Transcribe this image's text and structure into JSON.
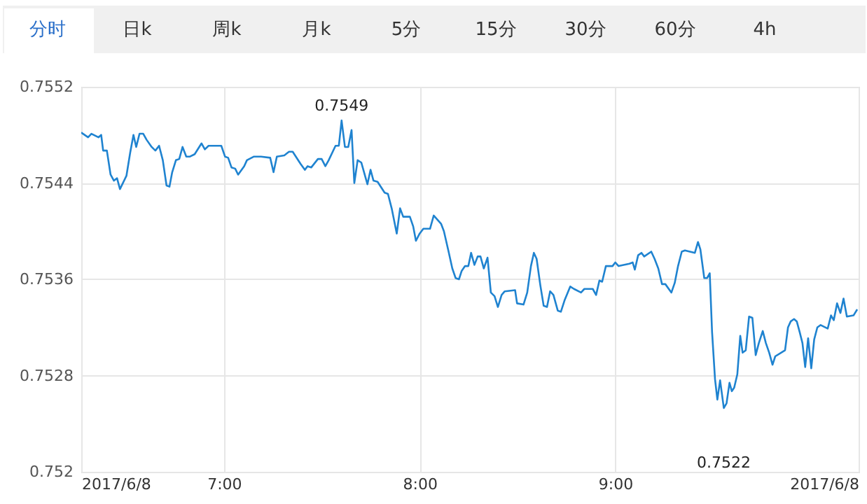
{
  "chart_data": {
    "type": "line",
    "annotations": [
      "分时",
      "日k",
      "周k",
      "月k",
      "5分",
      "15分",
      "30分",
      "60分",
      "4h",
      {
        "text": "0.7549",
        "x": 7.601,
        "y": 0.75492
      },
      {
        "text": "0.7522",
        "x": 9.555,
        "y": 0.75253
      }
    ],
    "xlim": [
      6.27,
      10.244
    ],
    "xticks": [
      {
        "value": 6.27,
        "label": "2017/6/8"
      },
      {
        "value": 7,
        "label": "7:00"
      },
      {
        "value": 8,
        "label": "8:00"
      },
      {
        "value": 9,
        "label": "9:00"
      },
      {
        "value": 10.244,
        "label": "2017/6/8"
      }
    ],
    "ylim": [
      0.752,
      0.7552
    ],
    "yticks": [
      0.752,
      0.7528,
      0.7536,
      0.7544,
      0.7552
    ],
    "grid": true,
    "marker": "none",
    "line_style": "solid",
    "series": [
      {
        "color": "#1f83d0",
        "x": [
          6.27,
          6.305,
          6.322,
          6.358,
          6.372,
          6.382,
          6.401,
          6.42,
          6.437,
          6.453,
          6.468,
          6.501,
          6.52,
          6.537,
          6.551,
          6.568,
          6.587,
          6.604,
          6.63,
          6.649,
          6.668,
          6.687,
          6.706,
          6.721,
          6.735,
          6.754,
          6.771,
          6.788,
          6.807,
          6.826,
          6.85,
          6.885,
          6.902,
          6.921,
          6.986,
          7.005,
          7.021,
          7.038,
          7.057,
          7.072,
          7.103,
          7.117,
          7.153,
          7.189,
          7.236,
          7.253,
          7.27,
          7.308,
          7.332,
          7.351,
          7.391,
          7.413,
          7.427,
          7.446,
          7.48,
          7.499,
          7.518,
          7.535,
          7.57,
          7.587,
          7.601,
          7.618,
          7.635,
          7.652,
          7.666,
          7.683,
          7.702,
          7.733,
          7.749,
          7.764,
          7.785,
          7.821,
          7.838,
          7.857,
          7.883,
          7.9,
          7.916,
          7.95,
          7.967,
          7.981,
          8.0,
          8.019,
          8.053,
          8.072,
          8.11,
          8.124,
          8.148,
          8.167,
          8.184,
          8.201,
          8.215,
          8.232,
          8.249,
          8.263,
          8.28,
          8.297,
          8.311,
          8.328,
          8.347,
          8.364,
          8.383,
          8.4,
          8.419,
          8.435,
          8.488,
          8.498,
          8.531,
          8.55,
          8.569,
          8.584,
          8.598,
          8.617,
          8.634,
          8.651,
          8.667,
          8.684,
          8.706,
          8.722,
          8.742,
          8.77,
          8.789,
          8.825,
          8.842,
          8.885,
          8.902,
          8.919,
          8.933,
          8.952,
          8.986,
          9.0,
          9.017,
          9.072,
          9.089,
          9.1,
          9.117,
          9.134,
          9.148,
          9.184,
          9.201,
          9.22,
          9.239,
          9.256,
          9.287,
          9.304,
          9.321,
          9.34,
          9.356,
          9.407,
          9.423,
          9.435,
          9.455,
          9.469,
          9.483,
          9.495,
          9.51,
          9.522,
          9.536,
          9.555,
          9.569,
          9.584,
          9.596,
          9.608,
          9.624,
          9.639,
          9.651,
          9.667,
          9.684,
          9.701,
          9.718,
          9.734,
          9.754,
          9.77,
          9.787,
          9.804,
          9.818,
          9.868,
          9.883,
          9.897,
          9.914,
          9.928,
          9.943,
          9.957,
          9.971,
          9.986,
          10.002,
          10.017,
          10.033,
          10.05,
          10.086,
          10.103,
          10.117,
          10.134,
          10.151,
          10.167,
          10.184,
          10.218,
          10.237
        ],
        "values": [
          0.75482,
          0.75478,
          0.75481,
          0.75478,
          0.7548,
          0.75467,
          0.75467,
          0.75447,
          0.75442,
          0.75444,
          0.75435,
          0.75446,
          0.75465,
          0.7548,
          0.7547,
          0.75481,
          0.75481,
          0.75476,
          0.7547,
          0.75467,
          0.75471,
          0.75459,
          0.75438,
          0.75437,
          0.75449,
          0.75459,
          0.7546,
          0.7547,
          0.75462,
          0.75462,
          0.75464,
          0.75473,
          0.75468,
          0.75471,
          0.75471,
          0.75462,
          0.75461,
          0.75453,
          0.75452,
          0.75447,
          0.75454,
          0.75459,
          0.75462,
          0.75462,
          0.75461,
          0.75449,
          0.75462,
          0.75463,
          0.75466,
          0.75466,
          0.75456,
          0.75451,
          0.75454,
          0.75453,
          0.7546,
          0.7546,
          0.75454,
          0.75459,
          0.75471,
          0.75471,
          0.75492,
          0.7547,
          0.7547,
          0.75484,
          0.7544,
          0.75459,
          0.75457,
          0.75439,
          0.75451,
          0.75442,
          0.75441,
          0.75432,
          0.75431,
          0.75419,
          0.75398,
          0.75419,
          0.75412,
          0.75412,
          0.75404,
          0.75392,
          0.75398,
          0.75402,
          0.75402,
          0.75413,
          0.75406,
          0.754,
          0.75383,
          0.75369,
          0.75361,
          0.7536,
          0.75367,
          0.75371,
          0.75371,
          0.75382,
          0.75372,
          0.75379,
          0.75379,
          0.75369,
          0.75378,
          0.75349,
          0.75346,
          0.75337,
          0.75347,
          0.7535,
          0.75351,
          0.7534,
          0.75339,
          0.75349,
          0.75371,
          0.75382,
          0.75377,
          0.75355,
          0.75338,
          0.75337,
          0.7535,
          0.75347,
          0.75334,
          0.75333,
          0.75343,
          0.75354,
          0.75352,
          0.75349,
          0.75352,
          0.75352,
          0.75347,
          0.75359,
          0.75358,
          0.75371,
          0.75371,
          0.75374,
          0.75371,
          0.75373,
          0.75374,
          0.75368,
          0.7538,
          0.75382,
          0.75379,
          0.75383,
          0.75377,
          0.75369,
          0.75356,
          0.75356,
          0.75349,
          0.75357,
          0.75371,
          0.75383,
          0.75384,
          0.75382,
          0.75391,
          0.75385,
          0.75361,
          0.75361,
          0.75365,
          0.75316,
          0.75277,
          0.7526,
          0.75276,
          0.75253,
          0.75257,
          0.75274,
          0.75267,
          0.7527,
          0.75281,
          0.75313,
          0.75299,
          0.75301,
          0.75329,
          0.75328,
          0.75297,
          0.75307,
          0.75317,
          0.75307,
          0.75299,
          0.75289,
          0.75296,
          0.75301,
          0.7532,
          0.75325,
          0.75327,
          0.75325,
          0.75316,
          0.75307,
          0.75287,
          0.75311,
          0.75286,
          0.7531,
          0.7532,
          0.75322,
          0.75319,
          0.7533,
          0.75326,
          0.7534,
          0.75332,
          0.75344,
          0.75329,
          0.7533,
          0.75335
        ]
      }
    ]
  }
}
